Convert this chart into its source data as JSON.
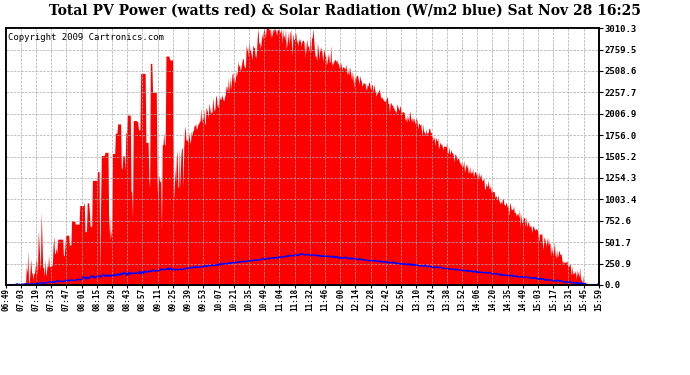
{
  "title": "Total PV Power (watts red) & Solar Radiation (W/m2 blue) Sat Nov 28 16:25",
  "copyright_text": "Copyright 2009 Cartronics.com",
  "ymax": 3010.3,
  "ymin": 0.0,
  "yticks": [
    0.0,
    250.9,
    501.7,
    752.6,
    1003.4,
    1254.3,
    1505.2,
    1756.0,
    2006.9,
    2257.7,
    2508.6,
    2759.5,
    3010.3
  ],
  "x_labels": [
    "06:49",
    "07:03",
    "07:19",
    "07:33",
    "07:47",
    "08:01",
    "08:15",
    "08:29",
    "08:43",
    "08:57",
    "09:11",
    "09:25",
    "09:39",
    "09:53",
    "10:07",
    "10:21",
    "10:35",
    "10:49",
    "11:04",
    "11:18",
    "11:32",
    "11:46",
    "12:00",
    "12:14",
    "12:28",
    "12:42",
    "12:56",
    "13:10",
    "13:24",
    "13:38",
    "13:52",
    "14:06",
    "14:20",
    "14:35",
    "14:49",
    "15:03",
    "15:17",
    "15:31",
    "15:45",
    "15:59"
  ],
  "pv_color": "#FF0000",
  "solar_color": "#0000FF",
  "bg_color": "#FFFFFF",
  "grid_color": "#AAAAAA",
  "title_fontsize": 10,
  "copyright_fontsize": 6.5
}
